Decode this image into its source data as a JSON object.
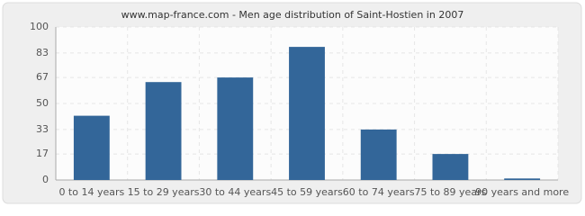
{
  "chart_data": {
    "type": "bar",
    "title": "www.map-france.com - Men age distribution of Saint-Hostien in 2007",
    "categories": [
      "0 to 14 years",
      "15 to 29 years",
      "30 to 44 years",
      "45 to 59 years",
      "60 to 74 years",
      "75 to 89 years",
      "90 years and more"
    ],
    "values": [
      42,
      64,
      67,
      87,
      33,
      17,
      1
    ],
    "color": "#336699",
    "ylim": [
      0,
      100
    ],
    "yticks": [
      0,
      17,
      33,
      50,
      67,
      83,
      100
    ],
    "grid": true
  }
}
